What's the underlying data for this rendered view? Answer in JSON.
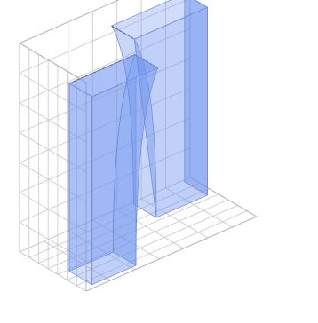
{
  "chart_data": {
    "type": "surface3d",
    "title": "",
    "xlabel": "",
    "ylabel": "",
    "zlabel": "",
    "axes_visible": false,
    "grid": true,
    "grid_divisions": 7,
    "xlim": [
      0,
      7
    ],
    "ylim": [
      0,
      7
    ],
    "zlim": [
      0,
      7
    ],
    "surface_color": "#6f95f0",
    "surface_opacity": 0.55,
    "edge_color": "#6a86d8",
    "rim_color": "#5a5a78",
    "grid_color": "#c8c8c8",
    "background": "#ffffff",
    "objects": [
      {
        "name": "left-solid",
        "x_range": [
          0.4,
          2.2
        ],
        "y_range": [
          0.4,
          2.8
        ],
        "height": 6.3,
        "flare_side": "inner",
        "flare_amount": 0.9
      },
      {
        "name": "right-solid",
        "x_range": [
          4.6,
          6.7
        ],
        "y_range": [
          4.4,
          6.8
        ],
        "height": 6.3,
        "flare_side": "inner",
        "flare_amount": 0.9
      }
    ]
  }
}
